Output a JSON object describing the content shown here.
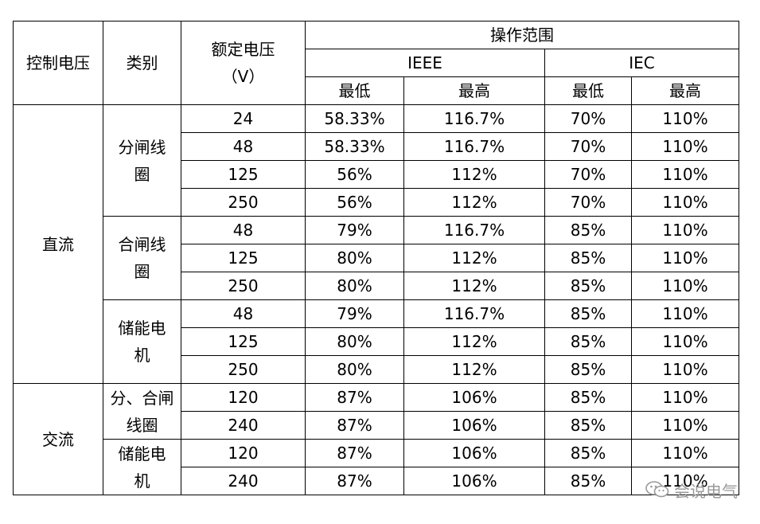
{
  "header": {
    "control_voltage": "控制电压",
    "category": "类别",
    "rated_voltage": "额定电压（V）",
    "operating_range": "操作范围",
    "ieee": "IEEE",
    "iec": "IEC",
    "min": "最低",
    "max": "最高"
  },
  "groups": {
    "dc": "直流",
    "ac": "交流"
  },
  "categories": {
    "trip_coil": "分闸线圈",
    "close_coil": "合闸线圈",
    "motor": "储能电机",
    "trip_close_coil": "分、合闸线圈",
    "ac_motor": "储能电机"
  },
  "rows": [
    {
      "v": "24",
      "ieee_min": "58.33%",
      "ieee_max": "116.7%",
      "iec_min": "70%",
      "iec_max": "110%"
    },
    {
      "v": "48",
      "ieee_min": "58.33%",
      "ieee_max": "116.7%",
      "iec_min": "70%",
      "iec_max": "110%"
    },
    {
      "v": "125",
      "ieee_min": "56%",
      "ieee_max": "112%",
      "iec_min": "70%",
      "iec_max": "110%"
    },
    {
      "v": "250",
      "ieee_min": "56%",
      "ieee_max": "112%",
      "iec_min": "70%",
      "iec_max": "110%"
    },
    {
      "v": "48",
      "ieee_min": "79%",
      "ieee_max": "116.7%",
      "iec_min": "85%",
      "iec_max": "110%"
    },
    {
      "v": "125",
      "ieee_min": "80%",
      "ieee_max": "112%",
      "iec_min": "85%",
      "iec_max": "110%"
    },
    {
      "v": "250",
      "ieee_min": "80%",
      "ieee_max": "112%",
      "iec_min": "85%",
      "iec_max": "110%"
    },
    {
      "v": "48",
      "ieee_min": "79%",
      "ieee_max": "116.7%",
      "iec_min": "85%",
      "iec_max": "110%"
    },
    {
      "v": "125",
      "ieee_min": "80%",
      "ieee_max": "112%",
      "iec_min": "85%",
      "iec_max": "110%"
    },
    {
      "v": "250",
      "ieee_min": "80%",
      "ieee_max": "112%",
      "iec_min": "85%",
      "iec_max": "110%"
    },
    {
      "v": "120",
      "ieee_min": "87%",
      "ieee_max": "106%",
      "iec_min": "85%",
      "iec_max": "110%"
    },
    {
      "v": "240",
      "ieee_min": "87%",
      "ieee_max": "106%",
      "iec_min": "85%",
      "iec_max": "110%"
    },
    {
      "v": "120",
      "ieee_min": "87%",
      "ieee_max": "106%",
      "iec_min": "85%",
      "iec_max": "110%"
    },
    {
      "v": "240",
      "ieee_min": "87%",
      "ieee_max": "106%",
      "iec_min": "85%",
      "iec_max": "110%"
    }
  ],
  "watermark": {
    "icon": "wechat-icon",
    "text": "会说电气"
  }
}
